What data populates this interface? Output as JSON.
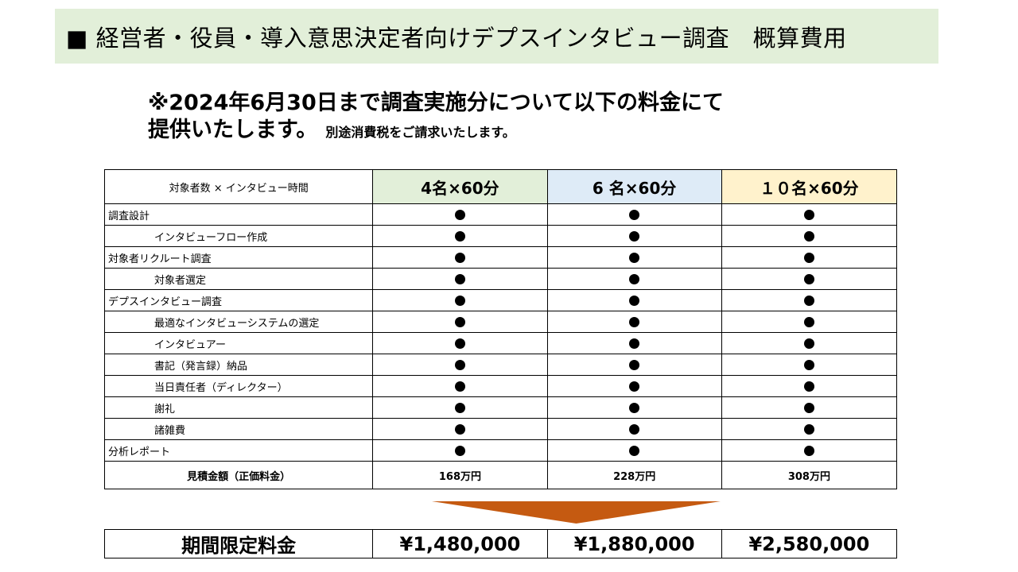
{
  "title": "■ 経営者・役員・導入意思決定者向けデプスインタビュー調査　概算費用",
  "notice": {
    "line1": "※2024年6月30日まで調査実施分について以下の料金にて",
    "line2": "提供いたします。",
    "tax_note": "別途消費税をご請求いたします。"
  },
  "table": {
    "header_label": "対象者数 × インタビュー時間",
    "plans": [
      {
        "label": "4名×60分",
        "color": "#e2efd9"
      },
      {
        "label": "6 名×60分",
        "color": "#deebf7"
      },
      {
        "label": "１０名×60分",
        "color": "#fff2cc"
      }
    ],
    "rows": [
      {
        "label": "調査設計",
        "indent": false
      },
      {
        "label": "インタビューフロー作成",
        "indent": true
      },
      {
        "label": "対象者リクルート調査",
        "indent": false
      },
      {
        "label": "対象者選定",
        "indent": true
      },
      {
        "label": "デプスインタビュー調査",
        "indent": false
      },
      {
        "label": "最適なインタビューシステムの選定",
        "indent": true
      },
      {
        "label": "インタビュアー",
        "indent": true
      },
      {
        "label": "書記（発言録）納品",
        "indent": true
      },
      {
        "label": "当日責任者（ディレクター）",
        "indent": true
      },
      {
        "label": "謝礼",
        "indent": true
      },
      {
        "label": "諸雑費",
        "indent": true
      },
      {
        "label": "分析レポート",
        "indent": false
      }
    ],
    "included_mark": "filled-circle-icon",
    "total_label": "見積金額（正価料金）",
    "totals": [
      "168万円",
      "228万円",
      "308万円"
    ]
  },
  "arrow_color": "#c55a11",
  "promo": {
    "label": "期間限定料金",
    "prices": [
      "¥1,480,000",
      "¥1,880,000",
      "¥2,580,000"
    ]
  }
}
